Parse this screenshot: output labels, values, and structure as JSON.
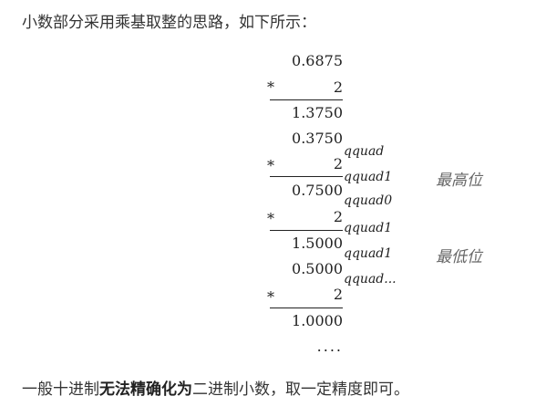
{
  "intro": "小数部分采用乘基取整的思路，如下所示：",
  "calc": {
    "start": "0.6875",
    "mul_sign": "*",
    "base": "2",
    "steps": [
      {
        "result": "1.3750",
        "next": "0.3750"
      },
      {
        "result": "0.7500"
      },
      {
        "result": "1.5000",
        "next": "0.5000"
      },
      {
        "result": "1.0000"
      }
    ],
    "annotations": [
      "qquad",
      "qquad1",
      "qquad0",
      "qquad1",
      "qquad1",
      "qquad..."
    ],
    "tail": "....",
    "labels": {
      "top": "最高位",
      "bottom": "最低位"
    }
  },
  "conclusion": {
    "before": "一般十进制",
    "bold": "无法精确化为",
    "after": "二进制小数，取一定精度即可。"
  }
}
